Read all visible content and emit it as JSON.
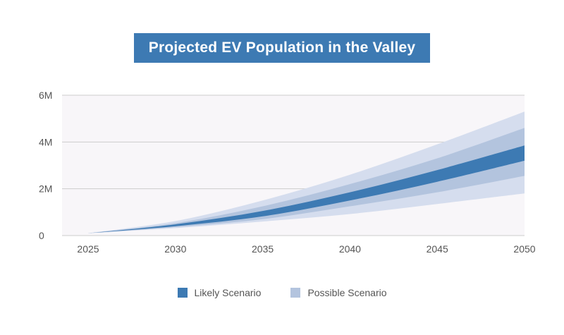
{
  "chart_data": {
    "type": "area",
    "title": "Projected EV Population in the Valley",
    "xlabel": "",
    "ylabel": "",
    "x": [
      2025,
      2030,
      2035,
      2040,
      2045,
      2050
    ],
    "xlim": [
      2025,
      2050
    ],
    "ylim": [
      0,
      6000000
    ],
    "y_ticks": [
      0,
      2000000,
      4000000,
      6000000
    ],
    "y_tick_labels": [
      "0",
      "2M",
      "4M",
      "6M"
    ],
    "x_tick_labels": [
      "2025",
      "2030",
      "2035",
      "2040",
      "2045",
      "2050"
    ],
    "grid": true,
    "legend_position": "bottom",
    "colors": {
      "likely": "#3d7ab3",
      "possible_inner": "#b3c4de",
      "possible_outer": "#d5ddee",
      "plot_background": "#f8f6f9",
      "grid": "#cccccc",
      "title_background": "#3d7ab3"
    },
    "series": [
      {
        "name": "Likely Scenario",
        "lower": [
          100000,
          400000,
          820000,
          1500000,
          2300000,
          3200000
        ],
        "upper": [
          100000,
          480000,
          1050000,
          1850000,
          2800000,
          3850000
        ]
      },
      {
        "name": "Possible Scenario",
        "lower": [
          100000,
          360000,
          700000,
          1250000,
          1850000,
          2550000
        ],
        "upper": [
          100000,
          530000,
          1250000,
          2200000,
          3300000,
          4600000
        ]
      },
      {
        "name": "Possible Scenario",
        "lower": [
          100000,
          320000,
          600000,
          920000,
          1350000,
          1800000
        ],
        "upper": [
          100000,
          620000,
          1500000,
          2600000,
          3900000,
          5300000
        ]
      }
    ],
    "legend": [
      "Likely Scenario",
      "Possible Scenario"
    ]
  }
}
